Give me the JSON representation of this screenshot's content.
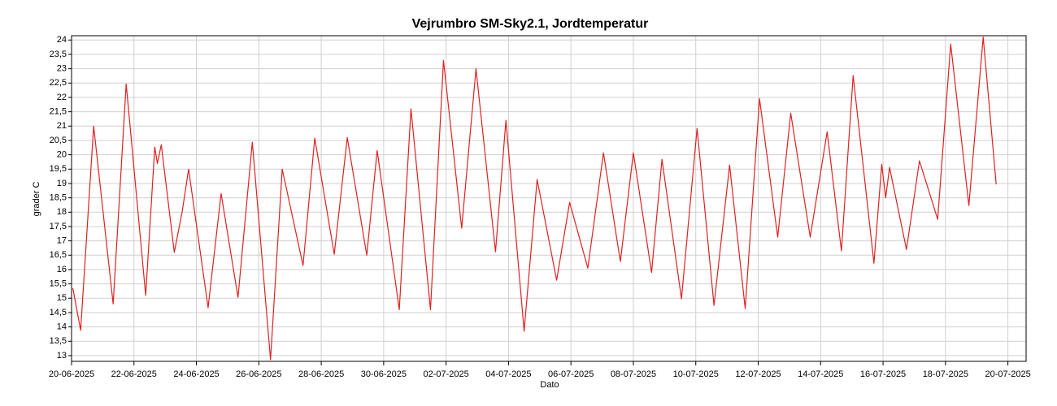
{
  "chart_data": {
    "type": "line",
    "title": "Vejrumbro SM-Sky2.1, Jordtemperatur",
    "x_label": "Dato",
    "y_label": "grader C",
    "grid": true,
    "x": [
      "2025-06-20T01:00",
      "2025-06-20T07:00",
      "2025-06-20T17:00",
      "2025-06-21T08:00",
      "2025-06-21T18:00",
      "2025-06-22T09:00",
      "2025-06-22T16:00",
      "2025-06-22T18:00",
      "2025-06-22T21:00",
      "2025-06-23T07:00",
      "2025-06-23T13:00",
      "2025-06-23T18:00",
      "2025-06-24T09:00",
      "2025-06-24T19:00",
      "2025-06-25T08:00",
      "2025-06-25T19:00",
      "2025-06-26T09:00",
      "2025-06-26T18:00",
      "2025-06-27T10:00",
      "2025-06-27T19:00",
      "2025-06-28T10:00",
      "2025-06-28T20:00",
      "2025-06-29T11:00",
      "2025-06-29T19:00",
      "2025-06-30T12:00",
      "2025-06-30T21:00",
      "2025-07-01T12:00",
      "2025-07-01T22:00",
      "2025-07-02T12:00",
      "2025-07-02T23:00",
      "2025-07-03T14:00",
      "2025-07-03T22:00",
      "2025-07-04T12:00",
      "2025-07-04T22:00",
      "2025-07-05T13:00",
      "2025-07-05T23:00",
      "2025-07-06T13:00",
      "2025-07-07T01:00",
      "2025-07-07T14:00",
      "2025-07-08T00:00",
      "2025-07-08T14:00",
      "2025-07-08T22:00",
      "2025-07-09T13:00",
      "2025-07-10T01:00",
      "2025-07-10T14:00",
      "2025-07-11T02:00",
      "2025-07-11T14:00",
      "2025-07-12T01:00",
      "2025-07-12T15:00",
      "2025-07-13T01:00",
      "2025-07-13T16:00",
      "2025-07-14T05:00",
      "2025-07-14T16:00",
      "2025-07-15T01:00",
      "2025-07-15T17:00",
      "2025-07-15T23:00",
      "2025-07-16T02:00",
      "2025-07-16T05:00",
      "2025-07-16T18:00",
      "2025-07-17T04:00",
      "2025-07-17T18:00",
      "2025-07-18T04:00",
      "2025-07-18T18:00",
      "2025-07-19T05:00",
      "2025-07-19T15:00"
    ],
    "series": [
      {
        "color": "#e02020",
        "values": [
          15.35,
          13.88,
          21.0,
          14.8,
          22.47,
          15.1,
          20.27,
          19.7,
          20.35,
          16.6,
          18.0,
          19.5,
          14.67,
          18.65,
          15.03,
          20.44,
          12.86,
          19.5,
          16.14,
          20.58,
          16.53,
          20.6,
          16.5,
          20.15,
          14.6,
          21.6,
          14.6,
          23.29,
          17.44,
          23.0,
          16.62,
          21.2,
          13.85,
          19.14,
          15.63,
          18.34,
          16.05,
          20.07,
          16.28,
          20.07,
          15.9,
          19.84,
          14.98,
          20.92,
          14.75,
          19.64,
          14.64,
          21.96,
          17.13,
          21.45,
          17.13,
          20.8,
          16.65,
          22.76,
          16.22,
          19.67,
          18.5,
          19.56,
          16.7,
          19.79,
          17.75,
          23.86,
          18.23,
          24.1,
          18.97
        ]
      }
    ],
    "xlim": [
      "2025-06-20T00:00",
      "2025-07-20T14:00"
    ],
    "xticks": [
      {
        "value": "2025-06-20T00:00",
        "label": "20-06-2025"
      },
      {
        "value": "2025-06-22T00:00",
        "label": "22-06-2025"
      },
      {
        "value": "2025-06-24T00:00",
        "label": "24-06-2025"
      },
      {
        "value": "2025-06-26T00:00",
        "label": "26-06-2025"
      },
      {
        "value": "2025-06-28T00:00",
        "label": "28-06-2025"
      },
      {
        "value": "2025-06-30T00:00",
        "label": "30-06-2025"
      },
      {
        "value": "2025-07-02T00:00",
        "label": "02-07-2025"
      },
      {
        "value": "2025-07-04T00:00",
        "label": "04-07-2025"
      },
      {
        "value": "2025-07-06T00:00",
        "label": "06-07-2025"
      },
      {
        "value": "2025-07-08T00:00",
        "label": "08-07-2025"
      },
      {
        "value": "2025-07-10T00:00",
        "label": "10-07-2025"
      },
      {
        "value": "2025-07-12T00:00",
        "label": "12-07-2025"
      },
      {
        "value": "2025-07-14T00:00",
        "label": "14-07-2025"
      },
      {
        "value": "2025-07-16T00:00",
        "label": "16-07-2025"
      },
      {
        "value": "2025-07-18T00:00",
        "label": "18-07-2025"
      },
      {
        "value": "2025-07-20T00:00",
        "label": "20-07-2025"
      }
    ],
    "ylim": [
      12.8,
      24.15
    ],
    "yticks": [
      13,
      {
        "value": 13.5,
        "label": "13,5"
      },
      14,
      {
        "value": 14.5,
        "label": "14,5"
      },
      15,
      {
        "value": 15.5,
        "label": "15,5"
      },
      16,
      {
        "value": 16.5,
        "label": "16,5"
      },
      17,
      {
        "value": 17.5,
        "label": "17,5"
      },
      18,
      {
        "value": 18.5,
        "label": "18,5"
      },
      19,
      {
        "value": 19.5,
        "label": "19,5"
      },
      20,
      {
        "value": 20.5,
        "label": "20,5"
      },
      21,
      {
        "value": 21.5,
        "label": "21,5"
      },
      22,
      {
        "value": 22.5,
        "label": "22,5"
      },
      23,
      {
        "value": 23.5,
        "label": "23,5"
      },
      24
    ]
  }
}
